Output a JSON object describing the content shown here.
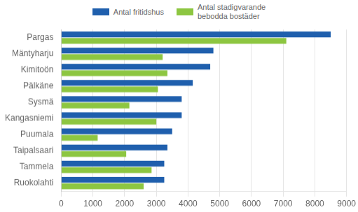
{
  "chart_data": {
    "type": "bar",
    "orientation": "horizontal",
    "categories": [
      "Pargas",
      "Mäntyharju",
      "Kimitоön",
      "Pälkäne",
      "Sysmä",
      "Kangasniemi",
      "Puumala",
      "Taipalsaari",
      "Tammela",
      "Ruokolahti"
    ],
    "series": [
      {
        "name": "Antal fritidshus",
        "color": "#1F5FAD",
        "values": [
          8500,
          4800,
          4700,
          4150,
          3800,
          3800,
          3500,
          3350,
          3250,
          3250
        ]
      },
      {
        "name": "Antal stadigvarande\nbebodda bostäder",
        "color": "#8DC641",
        "values": [
          7100,
          3200,
          3350,
          3050,
          2150,
          3000,
          1150,
          2050,
          2850,
          2600
        ]
      }
    ],
    "xlim": [
      0,
      9000
    ],
    "xticks": [
      0,
      1000,
      2000,
      3000,
      4000,
      5000,
      6000,
      7000,
      8000,
      9000
    ],
    "grid": true,
    "legend": "right"
  }
}
